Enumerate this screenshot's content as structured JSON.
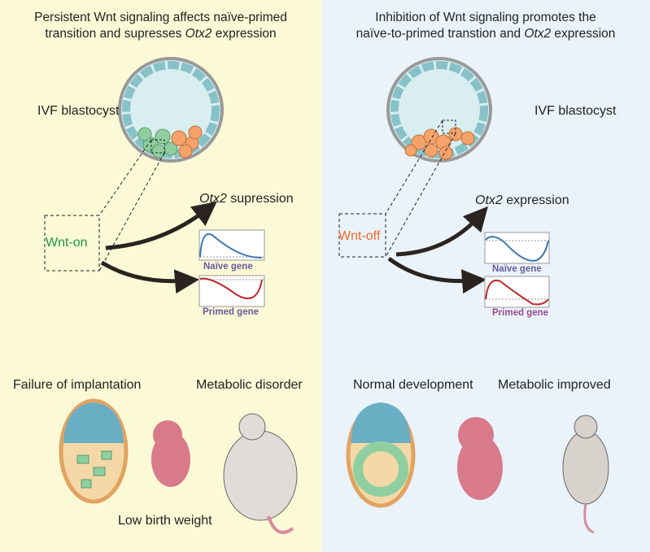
{
  "left": {
    "title_line1": "Persistent Wnt signaling affects naïve-primed",
    "title_line2_pre": "transition and supresses ",
    "title_line2_gene": "Otx2",
    "title_line2_post": " expression",
    "blastocyst_label": "IVF blastocyst",
    "condition": "Wnt-on",
    "outcome_gene": "Otx2",
    "outcome_text": " supression",
    "naive_label": "Naïve gene",
    "primed_label": "Primed gene",
    "phenotype1": "Failure of implantation",
    "phenotype2": "Metabolic disorder",
    "phenotype3": "Low birth weight"
  },
  "right": {
    "title_line1": "Inhibition of Wnt signaling promotes the",
    "title_line2_pre": "naïve-to-primed transtion and ",
    "title_line2_gene": "Otx2",
    "title_line2_post": " expression",
    "blastocyst_label": "IVF blastocyst",
    "condition": "Wnt-off",
    "outcome_gene": "Otx2",
    "outcome_text": " expression",
    "naive_label": "Naïve gene",
    "primed_label": "Primed gene",
    "phenotype1": "Normal development",
    "phenotype2": "Metabolic improved"
  },
  "colors": {
    "wnt_on": "#1a9a4a",
    "wnt_off": "#f06a2a",
    "naive_curve": "#3a78b0",
    "primed_curve": "#c0282a",
    "gene_label": "#6a5a9e",
    "left_bg": "#fcf9d6",
    "right_bg": "#eaf3fa"
  }
}
